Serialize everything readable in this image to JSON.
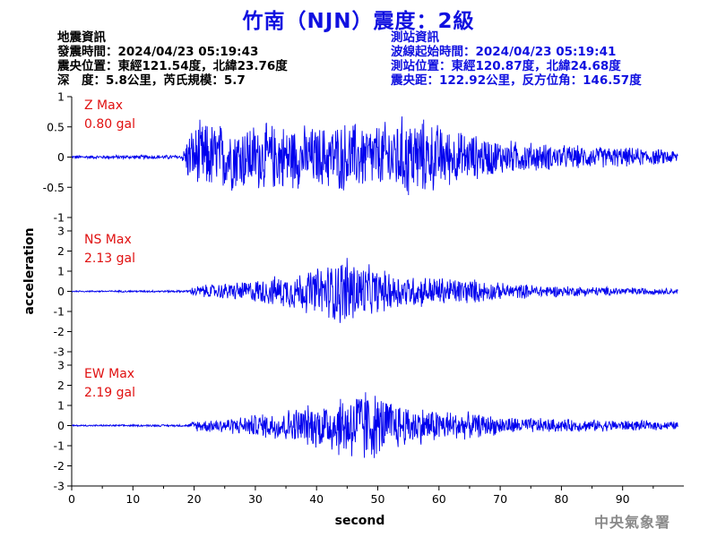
{
  "title": "竹南（NJN）震度：2級",
  "quake_info": {
    "heading": "地震資訊",
    "origin_time": "發震時間：2024/04/23 05:19:43",
    "epicenter": "震央位置：東經121.54度，北緯23.76度",
    "depth_magnitude": "深　度：5.8公里，芮氏規模：5.7"
  },
  "station_info": {
    "heading": "測站資訊",
    "wave_start": "波線起始時間：2024/04/23 05:19:41",
    "station_location": "測站位置：東經120.87度，北緯24.68度",
    "distance_azimuth": "震央距：122.92公里，反方位角：146.57度"
  },
  "agency": "中央氣象署",
  "colors": {
    "trace": "#0000ee",
    "title": "#1010e0",
    "max_label": "#e01010",
    "axis": "#000000"
  },
  "chart_data": {
    "type": "line",
    "xlabel": "second",
    "ylabel": "acceleration",
    "xlim": [
      0,
      100
    ],
    "xticks": [
      0,
      10,
      20,
      30,
      40,
      50,
      60,
      70,
      80,
      90
    ],
    "grid": false,
    "panels": [
      {
        "component": "Z",
        "max_label": "Z Max",
        "max_value": "0.80 gal",
        "ylim": [
          -1,
          1
        ],
        "yticks": [
          1,
          0.5,
          0,
          -0.5,
          -1
        ],
        "envelope": [
          [
            0,
            0.03
          ],
          [
            18,
            0.04
          ],
          [
            19,
            0.45
          ],
          [
            21,
            0.65
          ],
          [
            25,
            0.62
          ],
          [
            30,
            0.62
          ],
          [
            35,
            0.6
          ],
          [
            40,
            0.55
          ],
          [
            45,
            0.65
          ],
          [
            50,
            0.6
          ],
          [
            55,
            0.78
          ],
          [
            60,
            0.6
          ],
          [
            62,
            0.5
          ],
          [
            70,
            0.32
          ],
          [
            80,
            0.22
          ],
          [
            90,
            0.18
          ],
          [
            100,
            0.12
          ]
        ]
      },
      {
        "component": "NS",
        "max_label": "NS Max",
        "max_value": "2.13 gal",
        "ylim": [
          -3,
          3
        ],
        "yticks": [
          3,
          2,
          1,
          0,
          -1,
          -2,
          -3
        ],
        "envelope": [
          [
            0,
            0.04
          ],
          [
            19,
            0.06
          ],
          [
            20,
            0.3
          ],
          [
            28,
            0.55
          ],
          [
            35,
            0.9
          ],
          [
            40,
            1.3
          ],
          [
            43,
            1.7
          ],
          [
            45,
            2.1
          ],
          [
            47,
            1.6
          ],
          [
            50,
            1.2
          ],
          [
            55,
            0.9
          ],
          [
            60,
            0.8
          ],
          [
            65,
            0.7
          ],
          [
            70,
            0.45
          ],
          [
            80,
            0.3
          ],
          [
            90,
            0.22
          ],
          [
            100,
            0.15
          ]
        ]
      },
      {
        "component": "EW",
        "max_label": "EW Max",
        "max_value": "2.19 gal",
        "ylim": [
          -3,
          3
        ],
        "yticks": [
          3,
          2,
          1,
          0,
          -1,
          -2,
          -3
        ],
        "envelope": [
          [
            0,
            0.04
          ],
          [
            19,
            0.06
          ],
          [
            20,
            0.3
          ],
          [
            28,
            0.5
          ],
          [
            35,
            0.9
          ],
          [
            40,
            1.2
          ],
          [
            43,
            1.6
          ],
          [
            46,
            2.0
          ],
          [
            48,
            2.19
          ],
          [
            50,
            1.7
          ],
          [
            55,
            1.1
          ],
          [
            60,
            0.9
          ],
          [
            65,
            0.7
          ],
          [
            70,
            0.5
          ],
          [
            80,
            0.35
          ],
          [
            90,
            0.3
          ],
          [
            100,
            0.22
          ]
        ]
      }
    ]
  }
}
